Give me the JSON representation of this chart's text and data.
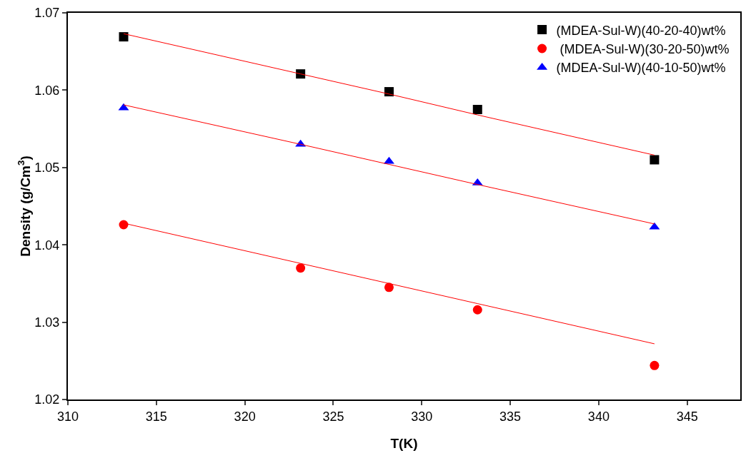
{
  "chart_data": {
    "type": "scatter",
    "xlabel": "T(K)",
    "ylabel": "Density (g/Cm$^{3}$)",
    "x": [
      313.15,
      323.15,
      328.15,
      333.15,
      343.15
    ],
    "series": [
      {
        "name": "(MDEA-Sul-W)(40-20-40)wt%",
        "color": "#000000",
        "marker": "square",
        "values": [
          1.0669,
          1.0621,
          1.0598,
          1.0575,
          1.051
        ]
      },
      {
        "name": " (MDEA-Sul-W)(30-20-50)wt%",
        "color": "#ff0000",
        "marker": "circle",
        "values": [
          1.0426,
          1.037,
          1.0345,
          1.0316,
          1.0244
        ]
      },
      {
        "name": "(MDEA-Sul-W)(40-10-50)wt%",
        "color": "#0000ff",
        "marker": "triangle",
        "values": [
          1.0577,
          1.053,
          1.0508,
          1.048,
          1.0423
        ]
      },
      {
        "type": "line",
        "color": "#ff0000",
        "values": [
          1.0673,
          1.0621,
          1.0595,
          1.0568,
          1.0516
        ]
      },
      {
        "type": "line",
        "color": "#ff0000",
        "values": [
          1.0581,
          1.053,
          1.0504,
          1.0478,
          1.0427
        ]
      },
      {
        "type": "line",
        "color": "#ff0000",
        "values": [
          1.0428,
          1.0376,
          1.035,
          1.0324,
          1.0272
        ]
      }
    ],
    "xlim": [
      310,
      348
    ],
    "xticks": [
      310,
      315,
      320,
      325,
      330,
      335,
      340,
      345
    ],
    "ylim": [
      1.02,
      1.07
    ],
    "yticks": [
      1.02,
      1.03,
      1.04,
      1.05,
      1.06,
      1.07
    ],
    "grid": false,
    "legend": "top right"
  }
}
